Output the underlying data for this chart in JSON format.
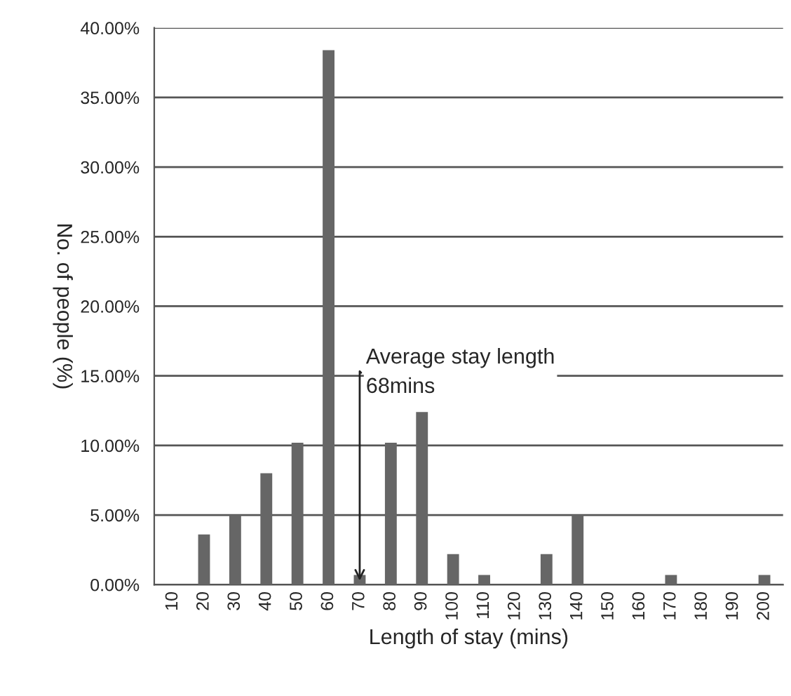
{
  "chart_data": {
    "type": "bar",
    "xlabel": "Length of stay (mins)",
    "ylabel": "No. of people (%)",
    "categories": [
      "10",
      "20",
      "30",
      "40",
      "50",
      "60",
      "70",
      "80",
      "90",
      "100",
      "110",
      "120",
      "130",
      "140",
      "150",
      "160",
      "170",
      "180",
      "190",
      "200"
    ],
    "values": [
      null,
      3.6,
      5.0,
      8.0,
      10.2,
      38.4,
      0.7,
      10.2,
      12.4,
      2.2,
      0.7,
      null,
      2.2,
      5.0,
      null,
      null,
      0.7,
      null,
      null,
      0.7
    ],
    "color": "#666666",
    "ylim": [
      0,
      40
    ],
    "yticks": [
      {
        "value": 0,
        "label": "0.00%"
      },
      {
        "value": 5,
        "label": "5.00%"
      },
      {
        "value": 10,
        "label": "10.00%"
      },
      {
        "value": 15,
        "label": "15.00%"
      },
      {
        "value": 20,
        "label": "20.00%"
      },
      {
        "value": 25,
        "label": "25.00%"
      },
      {
        "value": 30,
        "label": "30.00%"
      },
      {
        "value": 35,
        "label": "35.00%"
      },
      {
        "value": 40,
        "label": "40.00%"
      }
    ],
    "grid": "y",
    "annotations": [
      {
        "text": "Average stay length\n68mins",
        "x": "70",
        "y": 0
      }
    ]
  }
}
